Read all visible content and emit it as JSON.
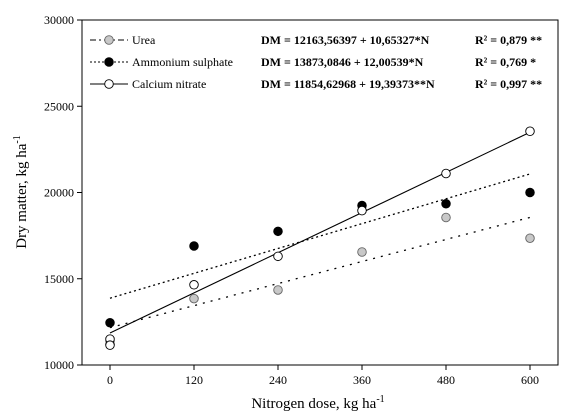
{
  "chart_data": {
    "type": "scatter",
    "x": [
      0,
      120,
      240,
      360,
      480,
      600
    ],
    "x_tick_labels": [
      "0",
      "120",
      "240",
      "360",
      "480",
      "600"
    ],
    "y_tick_labels": [
      "10000",
      "15000",
      "20000",
      "25000",
      "30000"
    ],
    "xlim": [
      -40,
      640
    ],
    "ylim": [
      10000,
      30000
    ],
    "grid": false,
    "legend_position": "top-left",
    "xlabel": {
      "main": "Nitrogen dose, kg ha",
      "sup": "-1"
    },
    "ylabel": {
      "main": "Dry matter, kg ha",
      "sup": "-1"
    },
    "series": [
      {
        "name": "Urea",
        "marker_fill": "#c8c8c8",
        "line_style": "dashdot",
        "points": [
          [
            0,
            11400
          ],
          [
            0,
            11200
          ],
          [
            120,
            13850
          ],
          [
            240,
            14350
          ],
          [
            360,
            16550
          ],
          [
            480,
            18550
          ],
          [
            600,
            17350
          ]
        ],
        "fit": {
          "intercept": 12163.56397,
          "slope": 10.65327
        },
        "equation": "DM = 12163,56397 + 10,65327*N",
        "r2": "R² = 0,879 **"
      },
      {
        "name": "Ammonium sulphate",
        "marker_fill": "#000000",
        "line_style": "dotted",
        "points": [
          [
            0,
            12450
          ],
          [
            120,
            16900
          ],
          [
            240,
            17750
          ],
          [
            360,
            19250
          ],
          [
            480,
            19350
          ],
          [
            600,
            20000
          ]
        ],
        "fit": {
          "intercept": 13873.0846,
          "slope": 12.00539
        },
        "equation": "DM = 13873,0846 + 12,00539*N",
        "r2": "R² = 0,769 *"
      },
      {
        "name": "Calcium nitrate",
        "marker_fill": "#ffffff",
        "line_style": "solid",
        "points": [
          [
            0,
            11500
          ],
          [
            0,
            11150
          ],
          [
            120,
            14650
          ],
          [
            240,
            16300
          ],
          [
            360,
            18950
          ],
          [
            480,
            21100
          ],
          [
            600,
            23550
          ]
        ],
        "fit": {
          "intercept": 11854.62968,
          "slope": 19.39373
        },
        "equation": "DM = 11854,62968 + 19,39373**N",
        "r2": "R² = 0,997 **"
      }
    ]
  }
}
